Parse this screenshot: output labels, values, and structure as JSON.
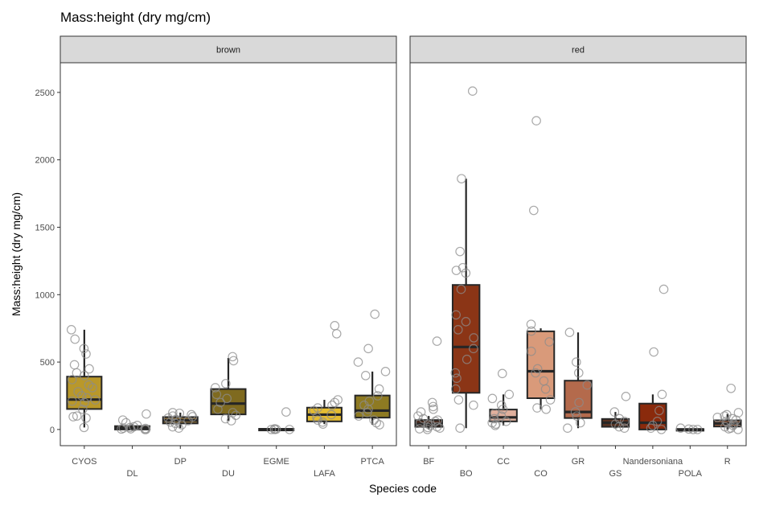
{
  "chart_data": {
    "type": "boxplot",
    "title": "Mass:height (dry mg/cm)",
    "xlabel": "Species code",
    "ylabel": "Mass:height (dry mg/cm)",
    "ylim": [
      -120,
      2720
    ],
    "yticks": [
      0,
      500,
      1000,
      1500,
      2000,
      2500
    ],
    "grid": false,
    "colors": {
      "box_stroke": "#262626",
      "point_stroke": "#8c8c8c",
      "strip_fill": "#d9d9d9",
      "panel_stroke": "#333333"
    },
    "panels": [
      {
        "name": "brown",
        "categories": [
          {
            "label": "CYOS",
            "color": "#b9982a",
            "whisker_low": 15,
            "q1": 152,
            "median": 222,
            "q3": 392,
            "whisker_high": 740,
            "points": [
              15,
              85,
              95,
              100,
              150,
              200,
              210,
              220,
              235,
              250,
              280,
              310,
              330,
              370,
              400,
              420,
              450,
              480,
              560,
              600,
              670,
              740
            ]
          },
          {
            "label": "DL",
            "color": "#8d7a2b",
            "whisker_low": 0,
            "q1": 0,
            "median": 10,
            "q3": 25,
            "whisker_high": 40,
            "points": [
              0,
              0,
              3,
              5,
              8,
              10,
              15,
              20,
              30,
              50,
              70,
              115
            ]
          },
          {
            "label": "DP",
            "color": "#8d6f3a",
            "whisker_low": 10,
            "q1": 45,
            "median": 68,
            "q3": 92,
            "whisker_high": 125,
            "points": [
              10,
              20,
              35,
              45,
              55,
              65,
              70,
              75,
              85,
              95,
              100,
              110,
              120,
              125
            ]
          },
          {
            "label": "DU",
            "color": "#7f6a1f",
            "whisker_low": 65,
            "q1": 112,
            "median": 192,
            "q3": 300,
            "whisker_high": 530,
            "points": [
              65,
              80,
              105,
              125,
              150,
              200,
              230,
              260,
              310,
              340,
              510,
              540
            ]
          },
          {
            "label": "EGME",
            "color": "#8a7a30",
            "whisker_low": 0,
            "q1": 0,
            "median": 0,
            "q3": 5,
            "whisker_high": 10,
            "points": [
              0,
              0,
              0,
              2,
              5,
              130
            ]
          },
          {
            "label": "LAFA",
            "color": "#e4bc32",
            "whisker_low": 40,
            "q1": 60,
            "median": 110,
            "q3": 162,
            "whisker_high": 220,
            "points": [
              40,
              55,
              70,
              90,
              110,
              140,
              160,
              180,
              200,
              220,
              710,
              770
            ]
          },
          {
            "label": "PTCA",
            "color": "#8e7a22",
            "whisker_low": 35,
            "q1": 88,
            "median": 140,
            "q3": 252,
            "whisker_high": 430,
            "points": [
              35,
              50,
              70,
              100,
              125,
              150,
              180,
              210,
              250,
              300,
              400,
              430,
              500,
              600,
              855
            ]
          }
        ]
      },
      {
        "name": "red",
        "categories": [
          {
            "label": "BF",
            "color": "#4a2a1d",
            "whisker_low": 0,
            "q1": 20,
            "median": 40,
            "q3": 70,
            "whisker_high": 100,
            "points": [
              0,
              5,
              10,
              15,
              20,
              30,
              40,
              50,
              60,
              70,
              80,
              100,
              130,
              150,
              170,
              200,
              655
            ]
          },
          {
            "label": "BO",
            "color": "#8b3516",
            "whisker_low": 10,
            "q1": 272,
            "median": 612,
            "q3": 1072,
            "whisker_high": 1860,
            "points": [
              10,
              180,
              220,
              300,
              380,
              420,
              520,
              600,
              680,
              740,
              800,
              850,
              1040,
              1160,
              1180,
              1200,
              1320,
              1860,
              2510
            ]
          },
          {
            "label": "CC",
            "color": "#e0b09d",
            "whisker_low": 30,
            "q1": 60,
            "median": 90,
            "q3": 148,
            "whisker_high": 260,
            "points": [
              30,
              40,
              50,
              60,
              80,
              100,
              120,
              150,
              180,
              230,
              260,
              415
            ]
          },
          {
            "label": "CO",
            "color": "#d99a7a",
            "whisker_low": 150,
            "q1": 232,
            "median": 432,
            "q3": 728,
            "whisker_high": 750,
            "points": [
              150,
              160,
              220,
              300,
              360,
              420,
              450,
              580,
              650,
              730,
              780,
              1625,
              2290
            ]
          },
          {
            "label": "GR",
            "color": "#b46a4c",
            "whisker_low": 10,
            "q1": 85,
            "median": 130,
            "q3": 362,
            "whisker_high": 720,
            "points": [
              10,
              50,
              100,
              130,
              200,
              330,
              420,
              500,
              720
            ]
          },
          {
            "label": "GS",
            "color": "#5b3221",
            "whisker_low": 10,
            "q1": 20,
            "median": 50,
            "q3": 78,
            "whisker_high": 130,
            "points": [
              10,
              20,
              40,
              60,
              80,
              130,
              245
            ]
          },
          {
            "label": "Nandersoniana",
            "color": "#8a2a0c",
            "whisker_low": 0,
            "q1": 0,
            "median": 50,
            "q3": 192,
            "whisker_high": 260,
            "points": [
              0,
              10,
              30,
              60,
              140,
              260,
              575,
              1040
            ]
          },
          {
            "label": "POLA",
            "color": "#3e2a22",
            "whisker_low": 0,
            "q1": 0,
            "median": 0,
            "q3": 3,
            "whisker_high": 5,
            "points": [
              0,
              0,
              3,
              10
            ]
          },
          {
            "label": "R",
            "color": "#9a5e3e",
            "whisker_low": 0,
            "q1": 22,
            "median": 45,
            "q3": 68,
            "whisker_high": 115,
            "points": [
              0,
              5,
              10,
              20,
              30,
              40,
              50,
              60,
              70,
              80,
              90,
              100,
              110,
              125,
              305
            ]
          }
        ]
      }
    ]
  }
}
